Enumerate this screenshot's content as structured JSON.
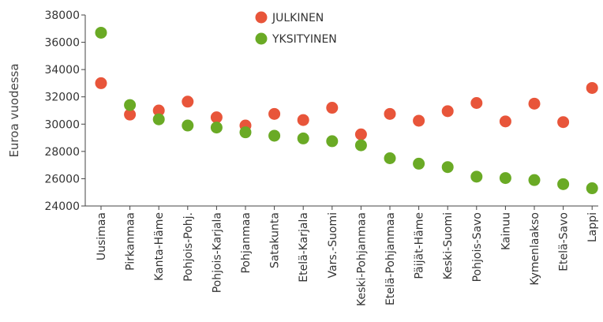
{
  "chart_data": {
    "type": "scatter",
    "title": "",
    "xlabel": "",
    "ylabel": "Euroa vuodessa",
    "ylim": [
      24000,
      38000
    ],
    "yticks": [
      24000,
      26000,
      28000,
      30000,
      32000,
      34000,
      36000,
      38000
    ],
    "ytick_labels": [
      "24000",
      "26000",
      "28000",
      "30000",
      "32000",
      "34000",
      "36000",
      "38000"
    ],
    "grid": false,
    "legend_position": "top-center",
    "categories": [
      "Uusimaa",
      "Pirkanmaa",
      "Kanta-Häme",
      "Pohjois-Pohj.",
      "Pohjois-Karjala",
      "Pohjanmaa",
      "Satakunta",
      "Etelä-Karjala",
      "Vars.-Suomi",
      "Keski-Pohjanmaa",
      "Etelä-Pohjanmaa",
      "Päijät-Häme",
      "Keski-Suomi",
      "Pohjois-Savo",
      "Kainuu",
      "Kymenlaakso",
      "Etelä-Savo",
      "Lappi"
    ],
    "series": [
      {
        "name": "JULKINEN",
        "color": "#e8553a",
        "values": [
          33000,
          30700,
          31000,
          31650,
          30500,
          29900,
          30750,
          30300,
          31200,
          29250,
          30750,
          30250,
          30950,
          31550,
          30200,
          31500,
          30150,
          32650
        ]
      },
      {
        "name": "YKSITYINEN",
        "color": "#6aaa25",
        "values": [
          36700,
          31400,
          30350,
          29900,
          29750,
          29400,
          29150,
          28950,
          28750,
          28450,
          27500,
          27100,
          26850,
          26150,
          26050,
          25900,
          25600,
          25300
        ]
      }
    ]
  }
}
